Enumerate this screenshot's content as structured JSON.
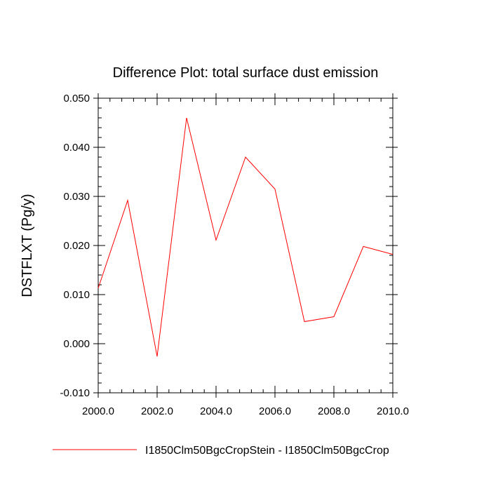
{
  "chart_data": {
    "type": "line",
    "title": "Difference Plot: total surface dust emission",
    "xlabel": "",
    "ylabel": "DSTFLXT  (Pg/y)",
    "xlim": [
      2000.0,
      2010.0
    ],
    "ylim": [
      -0.01,
      0.05
    ],
    "x_ticks": [
      2000.0,
      2002.0,
      2004.0,
      2006.0,
      2008.0,
      2010.0
    ],
    "x_tick_labels": [
      "2000.0",
      "2002.0",
      "2004.0",
      "2006.0",
      "2008.0",
      "2010.0"
    ],
    "y_ticks": [
      -0.01,
      0.0,
      0.01,
      0.02,
      0.03,
      0.04,
      0.05
    ],
    "y_tick_labels": [
      "-0.010",
      "0.000",
      "0.010",
      "0.020",
      "0.030",
      "0.040",
      "0.050"
    ],
    "grid": false,
    "legend_position": "bottom",
    "series": [
      {
        "name": "I1850Clm50BgcCropStein - I1850Clm50BgcCrop",
        "color": "#ff0000",
        "x": [
          2000,
          2001,
          2002,
          2003,
          2004,
          2005,
          2006,
          2007,
          2008,
          2009,
          2010
        ],
        "y": [
          0.0113,
          0.0292,
          -0.0026,
          0.046,
          0.0211,
          0.038,
          0.0315,
          0.0045,
          0.0055,
          0.0198,
          0.0182
        ]
      }
    ]
  }
}
